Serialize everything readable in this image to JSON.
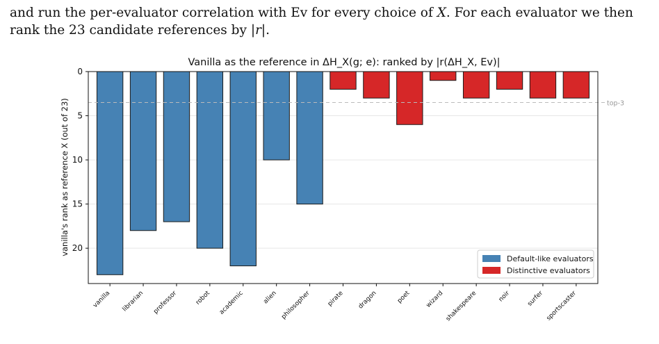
{
  "text": {
    "line1_a": "and run the per-evaluator correlation with Ev for every choice of ",
    "line1_var": "X",
    "line1_b": ". For each evaluator we then",
    "line2_a": "rank the 23 candidate references by ",
    "line2_abs": "|r|",
    "line2_b": "."
  },
  "colors": {
    "default": "#4682b4",
    "distinctive": "#d62728",
    "edge": "#1a1a1a",
    "grid": "#e6e6e6",
    "topline": "#bbbbbb"
  },
  "chart_data": {
    "type": "bar",
    "title": "Vanilla as the reference in ΔH_X(g; e): ranked by |r(ΔH_X, Ev)|",
    "ylabel": "vanilla's rank as reference X (out of 23)",
    "xlabel": "",
    "ylim": [
      0,
      24
    ],
    "y_inverted": true,
    "yticks": [
      0,
      5,
      10,
      15,
      20
    ],
    "grid": "horizontal",
    "legend_position": "lower-right",
    "reference_line": {
      "y": 3.5,
      "label": "top-3"
    },
    "categories": [
      "vanilla",
      "librarian",
      "professor",
      "robot",
      "academic",
      "alien",
      "philosopher",
      "pirate",
      "dragon",
      "poet",
      "wizard",
      "shakespeare",
      "noir",
      "surfer",
      "sportscaster"
    ],
    "series": [
      {
        "name": "Default-like evaluators",
        "color": "#4682b4",
        "values": [
          23,
          18,
          17,
          20,
          22,
          10,
          15,
          null,
          null,
          null,
          null,
          null,
          null,
          null,
          null
        ]
      },
      {
        "name": "Distinctive evaluators",
        "color": "#d62728",
        "values": [
          null,
          null,
          null,
          null,
          null,
          null,
          null,
          2,
          3,
          6,
          1,
          3,
          2,
          3,
          3
        ]
      }
    ]
  }
}
